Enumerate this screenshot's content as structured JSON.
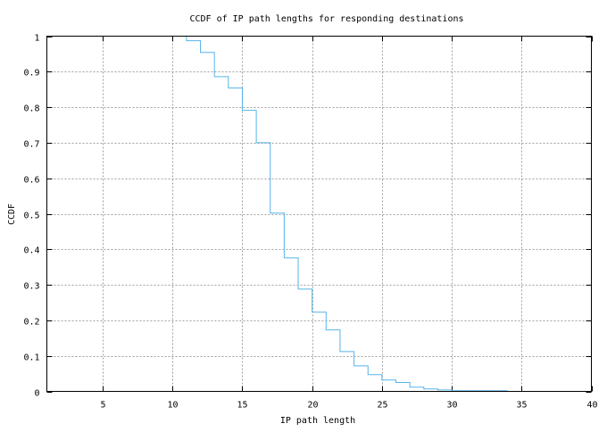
{
  "chart_data": {
    "type": "line",
    "step": true,
    "title": "CCDF of IP path lengths for responding destinations",
    "xlabel": "IP path length",
    "ylabel": "CCDF",
    "xlim": [
      1,
      40
    ],
    "ylim": [
      0,
      1
    ],
    "xticks": [
      5,
      10,
      15,
      20,
      25,
      30,
      35,
      40
    ],
    "yticks": [
      "0",
      "0.1",
      "0.2",
      "0.3",
      "0.4",
      "0.5",
      "0.6",
      "0.7",
      "0.8",
      "0.9",
      "1"
    ],
    "grid": true,
    "legend": "none",
    "color": "#56b4e9",
    "points": [
      [
        11,
        1.0
      ],
      [
        11,
        0.987
      ],
      [
        12,
        0.954
      ],
      [
        13,
        0.886
      ],
      [
        14,
        0.854
      ],
      [
        15,
        0.791
      ],
      [
        16,
        0.7
      ],
      [
        17,
        0.502
      ],
      [
        18,
        0.376
      ],
      [
        19,
        0.288
      ],
      [
        20,
        0.223
      ],
      [
        21,
        0.173
      ],
      [
        22,
        0.112
      ],
      [
        23,
        0.072
      ],
      [
        24,
        0.047
      ],
      [
        25,
        0.032
      ],
      [
        26,
        0.025
      ],
      [
        27,
        0.012
      ],
      [
        28,
        0.007
      ],
      [
        29,
        0.004
      ],
      [
        30,
        0.002
      ],
      [
        34,
        0.002
      ]
    ]
  }
}
